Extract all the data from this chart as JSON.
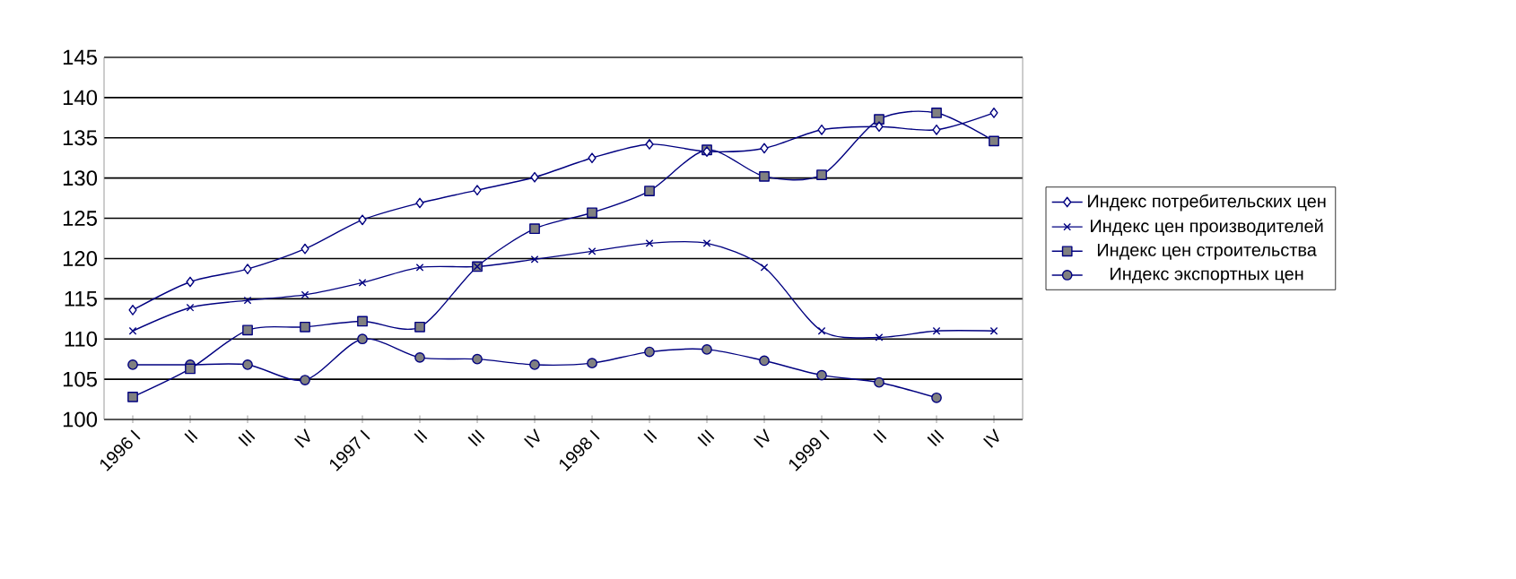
{
  "chart_data": {
    "type": "line",
    "categories": [
      "1996 I",
      "II",
      "III",
      "IV",
      "1997 I",
      "II",
      "III",
      "IV",
      "1998 I",
      "II",
      "III",
      "IV",
      "1999 I",
      "II",
      "III",
      "IV"
    ],
    "series": [
      {
        "name": "Индекс потребительских цен",
        "color": "#000080",
        "marker": "diamond",
        "values": [
          113.6,
          117.1,
          118.7,
          121.2,
          124.8,
          126.9,
          128.5,
          130.1,
          132.5,
          134.2,
          133.3,
          133.7,
          136.0,
          136.4,
          136.0,
          138.1
        ]
      },
      {
        "name": "Индекс цен производителей",
        "color": "#000080",
        "marker": "cross",
        "values": [
          111.0,
          113.9,
          114.8,
          115.5,
          117.0,
          118.9,
          119.0,
          119.9,
          120.9,
          121.9,
          121.9,
          118.9,
          111.0,
          110.2,
          111.0,
          111.0
        ]
      },
      {
        "name": "Индекс цен строительства",
        "color": "#000080",
        "marker": "square",
        "values": [
          102.8,
          106.3,
          111.1,
          111.5,
          112.2,
          111.5,
          119.0,
          123.7,
          125.7,
          128.4,
          133.5,
          130.2,
          130.4,
          137.3,
          138.1,
          134.6
        ]
      },
      {
        "name": "Индекс экспортных цен",
        "color": "#000080",
        "marker": "circle",
        "values": [
          106.8,
          106.8,
          106.8,
          104.9,
          110.0,
          107.7,
          107.5,
          106.8,
          107.0,
          108.4,
          108.7,
          107.3,
          105.5,
          104.6,
          102.7,
          null
        ]
      }
    ],
    "ylim": [
      100,
      145
    ],
    "yticks": [
      100,
      105,
      110,
      115,
      120,
      125,
      130,
      135,
      140,
      145
    ],
    "grid": "y",
    "legend": "right",
    "line_style": "solid"
  }
}
